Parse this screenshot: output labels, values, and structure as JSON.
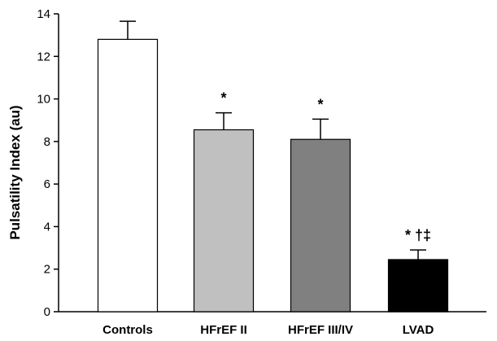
{
  "chart_data": {
    "type": "bar",
    "title": "",
    "xlabel": "",
    "ylabel": "Pulsatility Index (au)",
    "ylim": [
      0,
      14
    ],
    "yticks": [
      0,
      2,
      4,
      6,
      8,
      10,
      12,
      14
    ],
    "grid": false,
    "legend": "none",
    "categories": [
      "Controls",
      "HFrEF II",
      "HFrEF III/IV",
      "LVAD"
    ],
    "values": [
      12.8,
      8.55,
      8.1,
      2.45
    ],
    "errors": [
      0.85,
      0.8,
      0.95,
      0.45
    ],
    "annotations": [
      "",
      "*",
      "*",
      "* †‡"
    ],
    "bar_colors": [
      "#ffffff",
      "#c0c0c0",
      "#808080",
      "#000000"
    ]
  }
}
